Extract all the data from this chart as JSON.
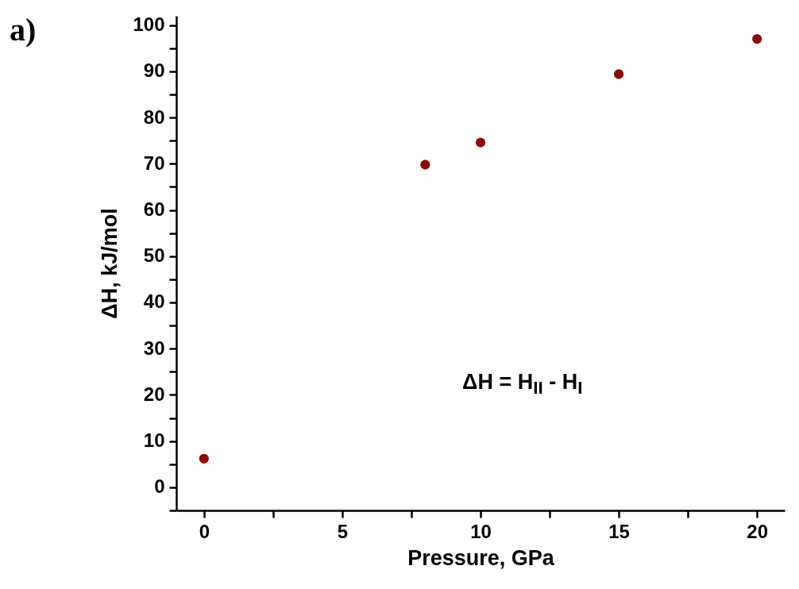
{
  "chart_data": {
    "type": "scatter",
    "xlabel": "Pressure, GPa",
    "ylabel": "ΔH, kJ/mol",
    "x": [
      0,
      8,
      10,
      15,
      20
    ],
    "series": [
      {
        "color": "#8b0a0a",
        "values": [
          6.2,
          69.8,
          74.6,
          89.4,
          97
        ]
      }
    ],
    "xlim": [
      -1,
      21
    ],
    "xticks": [
      0,
      {
        "value": 2.5,
        "label": null
      },
      5,
      {
        "value": 7.5,
        "label": null
      },
      10,
      {
        "value": 12.5,
        "label": null
      },
      15,
      {
        "value": 17.5,
        "label": null
      },
      20
    ],
    "ylim": [
      -5,
      102
    ],
    "yticks": [
      {
        "value": -5,
        "label": null
      },
      0,
      {
        "value": 5,
        "label": null
      },
      10,
      {
        "value": 15,
        "label": null
      },
      20,
      {
        "value": 25,
        "label": null
      },
      30,
      {
        "value": 35,
        "label": null
      },
      40,
      {
        "value": 45,
        "label": null
      },
      50,
      {
        "value": 55,
        "label": null
      },
      60,
      {
        "value": 65,
        "label": null
      },
      70,
      {
        "value": 75,
        "label": null
      },
      80,
      {
        "value": 85,
        "label": null
      },
      90,
      {
        "value": 95,
        "label": null
      },
      100
    ],
    "grid": false,
    "marker": "circle",
    "annotations": [
      "a)",
      "ΔH = H$_{II}$ - H$_{I}$"
    ]
  }
}
